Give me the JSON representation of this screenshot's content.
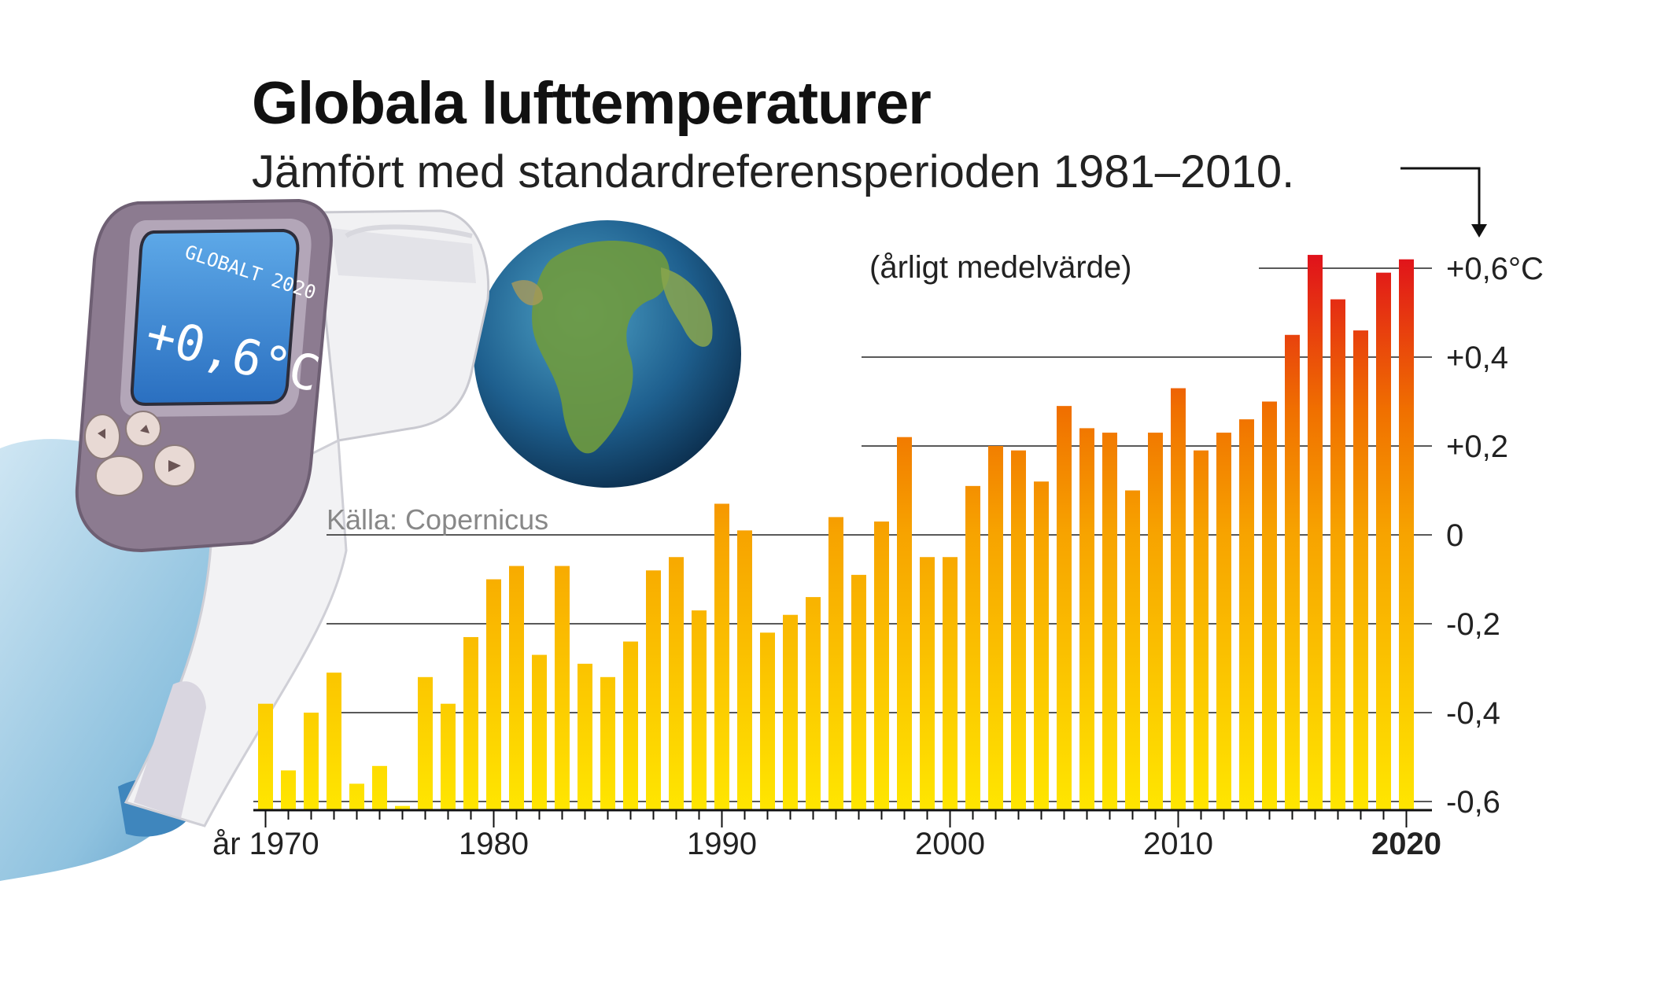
{
  "header": {
    "title": "Globala lufttemperaturer",
    "subtitle": "Jämfört med standardreferensperioden 1981–2010.",
    "unit_note": "(årligt medelvärde)",
    "source": "Källa: Copernicus"
  },
  "thermometer": {
    "screen_top": "GLOBALT 2020",
    "screen_value": "+0,6°C"
  },
  "colors": {
    "bar_low": "#ffe600",
    "bar_mid": "#f7a300",
    "bar_high": "#e0121b",
    "grid": "#222222"
  },
  "chart_data": {
    "type": "bar",
    "title": "Globala lufttemperaturer",
    "subtitle": "Jämfört med standardreferensperioden 1981–2010.",
    "ylabel": "(årligt medelvärde)",
    "ylim": [
      -0.6,
      0.6
    ],
    "yticks": [
      0.6,
      0.4,
      0.2,
      0,
      -0.2,
      -0.4,
      -0.6
    ],
    "ytick_labels": [
      "+0,6°C",
      "+0,4",
      "+0,2",
      "0",
      "-0,2",
      "-0,4",
      "-0,6"
    ],
    "xtick_years": [
      1970,
      1980,
      1990,
      2000,
      2010,
      2020
    ],
    "xtick_labels": [
      "år 1970",
      "1980",
      "1990",
      "2000",
      "2010",
      "2020"
    ],
    "grid": true,
    "x": [
      1970,
      1971,
      1972,
      1973,
      1974,
      1975,
      1976,
      1977,
      1978,
      1979,
      1980,
      1981,
      1982,
      1983,
      1984,
      1985,
      1986,
      1987,
      1988,
      1989,
      1990,
      1991,
      1992,
      1993,
      1994,
      1995,
      1996,
      1997,
      1998,
      1999,
      2000,
      2001,
      2002,
      2003,
      2004,
      2005,
      2006,
      2007,
      2008,
      2009,
      2010,
      2011,
      2012,
      2013,
      2014,
      2015,
      2016,
      2017,
      2018,
      2019,
      2020
    ],
    "values": [
      -0.38,
      -0.53,
      -0.4,
      -0.31,
      -0.56,
      -0.52,
      -0.61,
      -0.32,
      -0.38,
      -0.23,
      -0.1,
      -0.07,
      -0.27,
      -0.07,
      -0.29,
      -0.32,
      -0.24,
      -0.08,
      -0.05,
      -0.17,
      0.07,
      0.01,
      -0.22,
      -0.18,
      -0.14,
      0.04,
      -0.09,
      0.03,
      0.22,
      -0.05,
      -0.05,
      0.11,
      0.2,
      0.19,
      0.12,
      0.29,
      0.24,
      0.23,
      0.1,
      0.23,
      0.33,
      0.19,
      0.23,
      0.26,
      0.3,
      0.45,
      0.63,
      0.53,
      0.46,
      0.59,
      0.62
    ]
  }
}
